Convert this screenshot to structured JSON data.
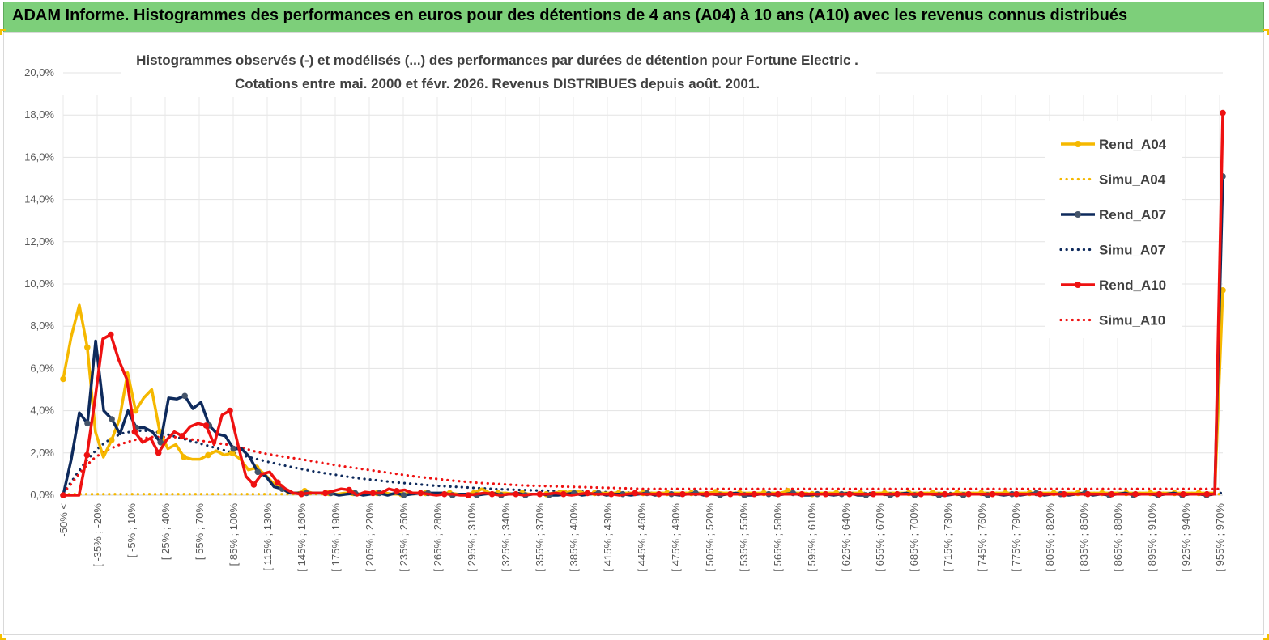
{
  "header": {
    "title": "ADAM Informe. Histogrammes des performances en euros pour des détentions de 4 ans (A04) à 10 ans (A10) avec les revenus connus distribués"
  },
  "colors": {
    "banner": "#7dcf7a",
    "a04": "#f5b800",
    "a07": "#0e2a5c",
    "a07_marker": "#44546a",
    "a10": "#ee1111"
  },
  "chart_data": {
    "type": "line",
    "title_lines": [
      "Histogrammes observés (-)  et modélisés (...) des performances par durées de détention pour Fortune Electric .",
      "Cotations entre mai. 2000 et févr. 2026. Revenus DISTRIBUES depuis août. 2001."
    ],
    "ylim": [
      0,
      20
    ],
    "y_ticks": [
      "0,0%",
      "2,0%",
      "4,0%",
      "6,0%",
      "8,0%",
      "10,0%",
      "12,0%",
      "14,0%",
      "16,0%",
      "18,0%",
      "20,0%"
    ],
    "x_labels": [
      "-50% <",
      "[ -35% ; -20%",
      "[ -5% ; 10%",
      "[ 25% ; 40%",
      "[ 55% ; 70%",
      "[ 85% ; 100%",
      "[ 115% ; 130%",
      "[ 145% ; 160%",
      "[ 175% ; 190%",
      "[ 205% ; 220%",
      "[ 235% ; 250%",
      "[ 265% ; 280%",
      "[ 295% ; 310%",
      "[ 325% ; 340%",
      "[ 355% ; 370%",
      "[ 385% ; 400%",
      "[ 415% ; 430%",
      "[ 445% ; 460%",
      "[ 475% ; 490%",
      "[ 505% ; 520%",
      "[ 535% ; 550%",
      "[ 565% ; 580%",
      "[ 595% ; 610%",
      "[ 625% ; 640%",
      "[ 655% ; 670%",
      "[ 685% ; 700%",
      "[ 715% ; 730%",
      "[ 745% ; 760%",
      "[ 775% ; 790%",
      "[ 805% ; 820%",
      "[ 835% ; 850%",
      "[ 865% ; 880%",
      "[ 895% ; 910%",
      "[ 925% ; 940%",
      "[ 955% ; 970%"
    ],
    "legend_position": "right",
    "series": [
      {
        "name": "Rend_A04",
        "style": "solid",
        "color": "#f5b800",
        "values": [
          5.5,
          7.5,
          9.0,
          7.0,
          3.0,
          1.8,
          2.6,
          3.6,
          5.8,
          4.0,
          4.6,
          5.0,
          3.0,
          2.2,
          2.4,
          1.8,
          1.7,
          1.7,
          1.9,
          2.1,
          1.9,
          2.0,
          1.7,
          1.2,
          1.3,
          1.0,
          0.6,
          0.4,
          0.1,
          0.1,
          0.2,
          0.1,
          0.1,
          0.1,
          0.05,
          0.1,
          0.1,
          0.05,
          0.1,
          0.1,
          0.1,
          0.05,
          0.05,
          0.1,
          0.1,
          0.1,
          0.05,
          0.1,
          0.1,
          0.05,
          0.05,
          0.1,
          0.3,
          0.1,
          0.1,
          0.1,
          0.05,
          0.1,
          0.05,
          0.05,
          0.05,
          0.1,
          0.2,
          0.1,
          0.2,
          0.05,
          0.1,
          0.1,
          0.1,
          0.1,
          0.1,
          0.1,
          0.1,
          0.1,
          0.1,
          0.1,
          0.1,
          0.1,
          0.1,
          0.1,
          0.1,
          0.15,
          0.1,
          0.1,
          0.1,
          0.1,
          0.1,
          0.1,
          0.1,
          0.1,
          0.2,
          0.1,
          0.1,
          0.05,
          0.1,
          0.1,
          0.1,
          0.1,
          0.1,
          0.1,
          0.05,
          0.1,
          0.1,
          0.1,
          0.1,
          0.1,
          0.1,
          0.1,
          0.1,
          0.1,
          0.05,
          0.1,
          0.1,
          0.1,
          0.1,
          0.1,
          0.1,
          0.1,
          0.1,
          0.1,
          0.1,
          0.1,
          0.1,
          0.1,
          0.1,
          0.1,
          0.1,
          0.1,
          0.1,
          0.1,
          0.1,
          0.1,
          0.1,
          0.1,
          0.1,
          0.1,
          0.1,
          0.1,
          0.1,
          0.1,
          0.1,
          0.1,
          0.1,
          0.1,
          9.7
        ]
      },
      {
        "name": "Simu_A04",
        "style": "dotted",
        "color": "#f5b800",
        "values": [
          0.05,
          0.05,
          0.05,
          0.05,
          0.05,
          0.05,
          0.05,
          0.05,
          0.05,
          0.05,
          0.05,
          0.05,
          0.05,
          0.05,
          0.05,
          0.05,
          0.05,
          0.05,
          0.05,
          0.05,
          0.05,
          0.05,
          0.05,
          0.05,
          0.05,
          0.05,
          0.05,
          0.05,
          0.05,
          0.05,
          0.05,
          0.05,
          0.05,
          0.05,
          0.05,
          0.05,
          0.05,
          0.05,
          0.05,
          0.05,
          0.05,
          0.05,
          0.05,
          0.05,
          0.05,
          0.05,
          0.05,
          0.05,
          0.05,
          0.05,
          0.05,
          0.05,
          0.05,
          0.05,
          0.05,
          0.05,
          0.05,
          0.05,
          0.05,
          0.05,
          0.05,
          0.05,
          0.05,
          0.05,
          0.05,
          0.05,
          0.05,
          0.05,
          0.05,
          0.05,
          0.05,
          0.05,
          0.05,
          0.05,
          0.05,
          0.05,
          0.05,
          0.05,
          0.05,
          0.05,
          0.05,
          0.05,
          0.05,
          0.05,
          0.05,
          0.05,
          0.05,
          0.05,
          0.05,
          0.05,
          0.05,
          0.05,
          0.05,
          0.05,
          0.05,
          0.05,
          0.05,
          0.05,
          0.05,
          0.05,
          0.05,
          0.05,
          0.05,
          0.05,
          0.05,
          0.05,
          0.05,
          0.05,
          0.05,
          0.05,
          0.05,
          0.05,
          0.05,
          0.05,
          0.05,
          0.05,
          0.05,
          0.05,
          0.05,
          0.05,
          0.05,
          0.05,
          0.05,
          0.05,
          0.05,
          0.05,
          0.05,
          0.05,
          0.05,
          0.05,
          0.05,
          0.05,
          0.05,
          0.05,
          0.05,
          0.05,
          0.05,
          0.05,
          0.05,
          0.05,
          0.05,
          0.05,
          0.05,
          0.05
        ]
      },
      {
        "name": "Rend_A07",
        "style": "solid",
        "color": "#0e2a5c",
        "values": [
          0.0,
          1.7,
          3.9,
          3.4,
          7.3,
          4.0,
          3.6,
          2.9,
          4.0,
          3.2,
          3.2,
          3.0,
          2.5,
          4.6,
          4.55,
          4.7,
          4.1,
          4.4,
          3.3,
          2.9,
          2.8,
          2.2,
          2.2,
          1.8,
          1.1,
          0.9,
          0.4,
          0.3,
          0.1,
          0.1,
          0.1,
          0.1,
          0.1,
          0.1,
          0.0,
          0.05,
          0.1,
          0.0,
          0.05,
          0.1,
          0.0,
          0.1,
          0.0,
          0.05,
          0.1,
          0.1,
          0.1,
          0.1,
          0.0,
          0.05,
          0.05,
          0.0,
          0.05,
          0.1,
          0.0,
          0.05,
          0.1,
          0.0,
          0.05,
          0.05,
          0.0,
          0.0,
          0.05,
          0.1,
          0.0,
          0.05,
          0.1,
          0.0,
          0.05,
          0.05,
          0.0,
          0.05,
          0.1,
          0.0,
          0.05,
          0.05,
          0.0,
          0.05,
          0.1,
          0.0,
          0.05,
          0.0,
          0.05,
          0.1,
          0.0,
          0.0,
          0.05,
          0.05,
          0.0,
          0.05,
          0.1,
          0.0,
          0.0,
          0.05,
          0.05,
          0.0,
          0.05,
          0.1,
          0.0,
          0.0,
          0.05,
          0.05,
          0.0,
          0.05,
          0.1,
          0.0,
          0.05,
          0.05,
          0.0,
          0.0,
          0.05,
          0.0,
          0.05,
          0.05,
          0.0,
          0.05,
          0.0,
          0.05,
          0.0,
          0.05,
          0.1,
          0.0,
          0.05,
          0.05,
          0.0,
          0.05,
          0.1,
          0.0,
          0.05,
          0.0,
          0.05,
          0.1,
          0.0,
          0.05,
          0.05,
          0.0,
          0.05,
          0.1,
          0.0,
          0.05,
          0.05,
          0.0,
          0.05,
          15.1
        ]
      },
      {
        "name": "Simu_A07",
        "style": "dotted",
        "color": "#0e2a5c",
        "values": [
          0.1,
          0.6,
          1.1,
          1.6,
          2.0,
          2.35,
          2.6,
          2.8,
          2.95,
          3.0,
          3.05,
          3.05,
          3.0,
          2.95,
          2.85,
          2.75,
          2.65,
          2.55,
          2.45,
          2.35,
          2.25,
          2.15,
          2.05,
          1.95,
          1.85,
          1.76,
          1.67,
          1.58,
          1.5,
          1.42,
          1.34,
          1.27,
          1.2,
          1.13,
          1.07,
          1.01,
          0.96,
          0.9,
          0.85,
          0.8,
          0.76,
          0.72,
          0.68,
          0.64,
          0.6,
          0.57,
          0.54,
          0.51,
          0.48,
          0.45,
          0.43,
          0.41,
          0.39,
          0.37,
          0.35,
          0.33,
          0.31,
          0.29,
          0.28,
          0.27,
          0.25,
          0.24,
          0.23,
          0.22,
          0.21,
          0.2,
          0.19,
          0.18,
          0.17,
          0.16,
          0.15,
          0.15,
          0.14,
          0.13,
          0.13,
          0.12,
          0.12,
          0.11,
          0.11,
          0.1,
          0.1,
          0.1,
          0.1,
          0.1,
          0.1,
          0.1,
          0.1,
          0.1,
          0.1,
          0.1,
          0.1,
          0.1,
          0.1,
          0.1,
          0.1,
          0.1,
          0.1,
          0.1,
          0.1,
          0.1,
          0.1,
          0.1,
          0.1,
          0.1,
          0.1,
          0.1,
          0.1,
          0.1,
          0.1,
          0.1,
          0.1,
          0.1,
          0.1,
          0.1,
          0.1,
          0.1,
          0.1,
          0.1,
          0.1,
          0.1,
          0.1,
          0.1,
          0.1,
          0.1,
          0.1,
          0.1,
          0.1,
          0.1,
          0.1,
          0.1,
          0.1,
          0.1,
          0.1,
          0.1,
          0.1,
          0.1,
          0.1,
          0.1,
          0.1,
          0.1,
          0.1,
          0.1,
          0.1,
          0.1,
          0.1,
          0.1,
          0.1,
          0.1,
          0.1,
          0.1,
          0.1,
          0.1,
          0.1,
          0.1
        ]
      },
      {
        "name": "Rend_A10",
        "style": "solid",
        "color": "#ee1111",
        "values": [
          0.0,
          0.0,
          0.0,
          1.9,
          4.5,
          7.4,
          7.6,
          6.4,
          5.5,
          3.0,
          2.5,
          2.7,
          2.0,
          2.6,
          3.0,
          2.8,
          3.25,
          3.4,
          3.3,
          2.4,
          3.8,
          4.0,
          2.4,
          0.9,
          0.5,
          1.0,
          1.1,
          0.6,
          0.3,
          0.1,
          0.05,
          0.1,
          0.1,
          0.1,
          0.2,
          0.3,
          0.25,
          0.0,
          0.15,
          0.1,
          0.1,
          0.3,
          0.2,
          0.25,
          0.1,
          0.1,
          0.05,
          0.0,
          0.05,
          0.05,
          0.0,
          0.0,
          0.05,
          0.1,
          0.05,
          0.0,
          0.05,
          0.05,
          0.0,
          0.05,
          0.05,
          0.05,
          0.1,
          0.05,
          0.0,
          0.05,
          0.1,
          0.05,
          0.05,
          0.05,
          0.0,
          0.05,
          0.1,
          0.05,
          0.05,
          0.05,
          0.05,
          0.05,
          0.05,
          0.05,
          0.05,
          0.05,
          0.05,
          0.05,
          0.05,
          0.05,
          0.05,
          0.05,
          0.05,
          0.05,
          0.05,
          0.05,
          0.05,
          0.05,
          0.05,
          0.05,
          0.05,
          0.05,
          0.05,
          0.05,
          0.05,
          0.05,
          0.05,
          0.05,
          0.05,
          0.05,
          0.05,
          0.05,
          0.05,
          0.05,
          0.05,
          0.05,
          0.05,
          0.05,
          0.05,
          0.05,
          0.05,
          0.05,
          0.05,
          0.05,
          0.05,
          0.05,
          0.05,
          0.05,
          0.05,
          0.05,
          0.05,
          0.05,
          0.05,
          0.05,
          0.05,
          0.05,
          0.05,
          0.05,
          0.05,
          0.05,
          0.05,
          0.05,
          0.05,
          0.05,
          0.05,
          0.05,
          0.05,
          0.05,
          0.05,
          0.05,
          18.1
        ]
      },
      {
        "name": "Simu_A10",
        "style": "dotted",
        "color": "#ee1111",
        "values": [
          0.1,
          0.5,
          0.95,
          1.35,
          1.7,
          1.95,
          2.15,
          2.3,
          2.45,
          2.55,
          2.65,
          2.7,
          2.75,
          2.75,
          2.75,
          2.75,
          2.7,
          2.65,
          2.6,
          2.55,
          2.5,
          2.45,
          2.4,
          2.3,
          2.25,
          2.15,
          2.05,
          1.98,
          1.92,
          1.86,
          1.8,
          1.75,
          1.7,
          1.64,
          1.58,
          1.52,
          1.46,
          1.4,
          1.35,
          1.3,
          1.25,
          1.2,
          1.15,
          1.1,
          1.05,
          1.0,
          0.95,
          0.9,
          0.86,
          0.82,
          0.78,
          0.74,
          0.7,
          0.67,
          0.64,
          0.61,
          0.58,
          0.56,
          0.54,
          0.52,
          0.5,
          0.48,
          0.46,
          0.45,
          0.44,
          0.43,
          0.42,
          0.41,
          0.4,
          0.39,
          0.38,
          0.37,
          0.36,
          0.35,
          0.34,
          0.33,
          0.32,
          0.31,
          0.3,
          0.3,
          0.3,
          0.3,
          0.3,
          0.3,
          0.3,
          0.3,
          0.3,
          0.3,
          0.3,
          0.3,
          0.3,
          0.3,
          0.3,
          0.3,
          0.3,
          0.3,
          0.3,
          0.3,
          0.3,
          0.3,
          0.3,
          0.3,
          0.3,
          0.3,
          0.3,
          0.3,
          0.3,
          0.3,
          0.3,
          0.3,
          0.3,
          0.3,
          0.3,
          0.3,
          0.3,
          0.3,
          0.3,
          0.3,
          0.3,
          0.3,
          0.3,
          0.3,
          0.3,
          0.3,
          0.3,
          0.3,
          0.3,
          0.3,
          0.3,
          0.3,
          0.3,
          0.3,
          0.3,
          0.3,
          0.3,
          0.3,
          0.3,
          0.3,
          0.3,
          0.3,
          0.3,
          0.3,
          0.3,
          0.3,
          0.3,
          0.3,
          0.3,
          0.3,
          0.3,
          0.3,
          0.3,
          0.3,
          0.3,
          0.3,
          0.3,
          0.3,
          0.3
        ]
      }
    ]
  }
}
